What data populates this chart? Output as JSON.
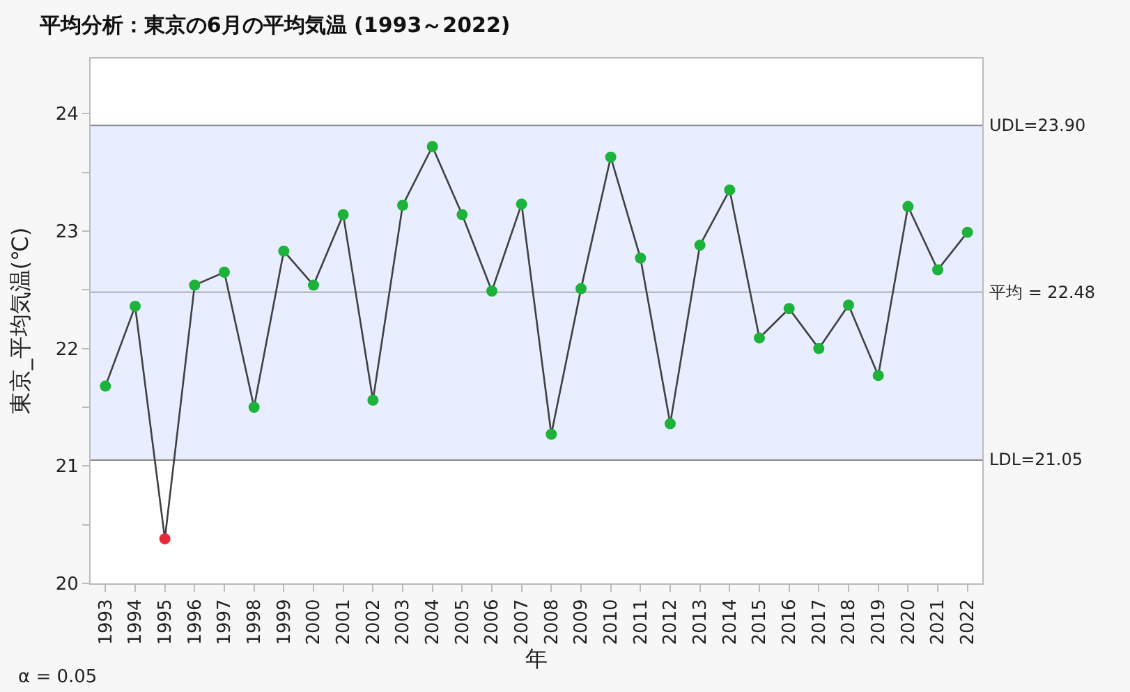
{
  "chart_data": {
    "type": "line",
    "title": "平均分析：東京の6月の平均気温 (1993～2022)",
    "xlabel": "年",
    "ylabel": "東京_平均気温(℃)",
    "categories": [
      "1993",
      "1994",
      "1995",
      "1996",
      "1997",
      "1998",
      "1999",
      "2000",
      "2001",
      "2002",
      "2003",
      "2004",
      "2005",
      "2006",
      "2007",
      "2008",
      "2009",
      "2010",
      "2011",
      "2012",
      "2013",
      "2014",
      "2015",
      "2016",
      "2017",
      "2018",
      "2019",
      "2020",
      "2021",
      "2022"
    ],
    "series": [
      {
        "color": "#404040",
        "colors": [
          "#1db33a",
          "#1db33a",
          "#e8293b",
          "#1db33a",
          "#1db33a",
          "#1db33a",
          "#1db33a",
          "#1db33a",
          "#1db33a",
          "#1db33a",
          "#1db33a",
          "#1db33a",
          "#1db33a",
          "#1db33a",
          "#1db33a",
          "#1db33a",
          "#1db33a",
          "#1db33a",
          "#1db33a",
          "#1db33a",
          "#1db33a",
          "#1db33a",
          "#1db33a",
          "#1db33a",
          "#1db33a",
          "#1db33a",
          "#1db33a",
          "#1db33a",
          "#1db33a",
          "#1db33a"
        ],
        "values": [
          21.68,
          22.36,
          20.38,
          22.54,
          22.65,
          21.5,
          22.83,
          22.54,
          23.14,
          21.56,
          23.22,
          23.72,
          23.14,
          22.49,
          23.23,
          21.27,
          22.51,
          23.63,
          22.77,
          21.36,
          22.88,
          23.35,
          22.09,
          22.34,
          22.0,
          22.37,
          21.77,
          23.21,
          22.67,
          22.99
        ]
      }
    ],
    "ylim": [
      20,
      24.47
    ],
    "yticks": [
      20,
      {
        "value": 20.5,
        "label": null
      },
      21,
      {
        "value": 21.5,
        "label": null
      },
      22,
      {
        "value": 22.5,
        "label": null
      },
      23,
      {
        "value": 23.5,
        "label": null
      },
      24
    ],
    "bands": [
      {
        "axis": "y",
        "from": 21.05,
        "to": 23.9,
        "color": "#e8eeff"
      }
    ],
    "ref_lines": [
      {
        "axis": "y",
        "value": 23.9,
        "label": "UDL=23.90",
        "color": "#909090"
      },
      {
        "axis": "y",
        "value": 22.48,
        "label": "平均 = 22.48",
        "color": "#b8bcc8"
      },
      {
        "axis": "y",
        "value": 21.05,
        "label": "LDL=21.05",
        "color": "#909090"
      }
    ],
    "annotations": [
      "α = 0.05"
    ],
    "marker": "circle",
    "line_style": "solid",
    "grid": false
  }
}
